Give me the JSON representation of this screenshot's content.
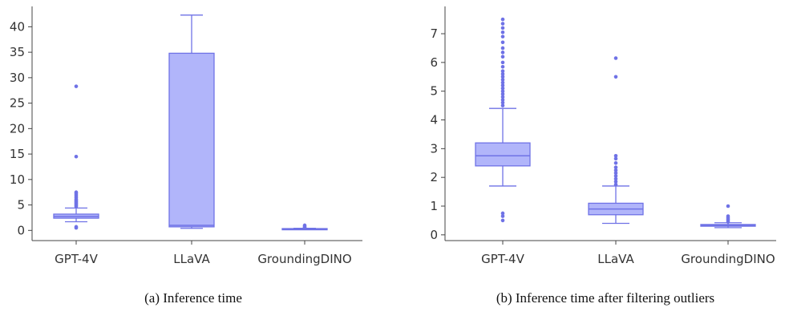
{
  "chart_data": [
    {
      "type": "box",
      "caption": "(a) Inference time",
      "categories": [
        "GPT-4V",
        "LLaVA",
        "GroundingDINO"
      ],
      "ylim": [
        -2,
        44
      ],
      "yticks": [
        0,
        5,
        10,
        15,
        20,
        25,
        30,
        35,
        40
      ],
      "grid": false,
      "boxes": [
        {
          "category": "GPT-4V",
          "whisker_low": 1.7,
          "q1": 2.4,
          "median": 2.75,
          "q3": 3.2,
          "whisker_high": 4.4,
          "outliers": [
            0.5,
            0.7,
            4.7,
            4.9,
            5.1,
            5.3,
            5.5,
            5.7,
            5.9,
            6.1,
            6.4,
            6.7,
            7.0,
            7.3,
            7.5,
            14.5,
            28.3
          ]
        },
        {
          "category": "LLaVA",
          "whisker_low": 0.4,
          "q1": 0.7,
          "median": 1.0,
          "q3": 34.8,
          "whisker_high": 42.3,
          "outliers": []
        },
        {
          "category": "GroundingDINO",
          "whisker_low": 0.25,
          "q1": 0.3,
          "median": 0.33,
          "q3": 0.36,
          "whisker_high": 0.42,
          "outliers": [
            0.5,
            0.6,
            0.8,
            1.0
          ]
        }
      ]
    },
    {
      "type": "box",
      "caption": "(b) Inference time after filtering outliers",
      "categories": [
        "GPT-4V",
        "LLaVA",
        "GroundingDINO"
      ],
      "ylim": [
        -0.2,
        7.95
      ],
      "yticks": [
        0,
        1,
        2,
        3,
        4,
        5,
        6,
        7
      ],
      "grid": false,
      "boxes": [
        {
          "category": "GPT-4V",
          "whisker_low": 1.7,
          "q1": 2.4,
          "median": 2.75,
          "q3": 3.2,
          "whisker_high": 4.4,
          "outliers": [
            0.5,
            0.65,
            0.75,
            4.5,
            4.6,
            4.7,
            4.8,
            4.9,
            5.0,
            5.1,
            5.2,
            5.3,
            5.4,
            5.5,
            5.6,
            5.7,
            5.85,
            6.0,
            6.2,
            6.35,
            6.5,
            6.7,
            6.9,
            7.05,
            7.2,
            7.35,
            7.5
          ]
        },
        {
          "category": "LLaVA",
          "whisker_low": 0.4,
          "q1": 0.7,
          "median": 0.9,
          "q3": 1.1,
          "whisker_high": 1.7,
          "outliers": [
            1.75,
            1.85,
            1.95,
            2.05,
            2.15,
            2.25,
            2.35,
            2.5,
            2.65,
            2.75,
            5.5,
            6.15
          ]
        },
        {
          "category": "GroundingDINO",
          "whisker_low": 0.25,
          "q1": 0.3,
          "median": 0.33,
          "q3": 0.36,
          "whisker_high": 0.42,
          "outliers": [
            0.45,
            0.5,
            0.55,
            0.6,
            0.65,
            1.0
          ]
        }
      ]
    }
  ],
  "style": {
    "box_fill": "#b1b5fa",
    "box_stroke": "#6f72e6",
    "point_color": "#6f72e6",
    "axis_color": "#444444",
    "text_color": "#333333"
  }
}
